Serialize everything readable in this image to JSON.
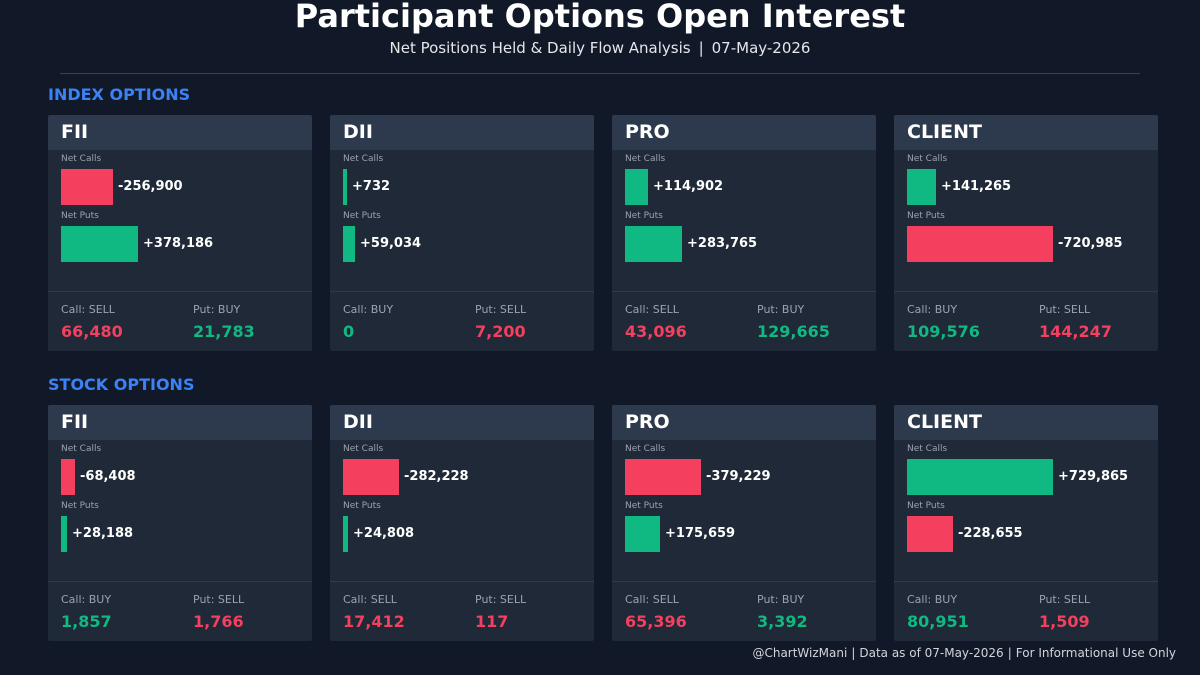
{
  "header": {
    "title": "Participant Options Open Interest",
    "subtitle": "Net Positions Held & Daily Flow Analysis",
    "date": "07-May-2026"
  },
  "colors": {
    "positive": "#10b981",
    "negative": "#f43f5e",
    "section": "#3b82f6",
    "background": "#111827",
    "card": "#1f2937",
    "card_header": "#2d3a4d"
  },
  "labels": {
    "net_calls": "Net Calls",
    "net_puts": "Net Puts"
  },
  "chart_data": [
    {
      "type": "bar",
      "section": "INDEX OPTIONS",
      "participants": [
        {
          "name": "FII",
          "net_calls": -256900,
          "net_calls_text": "-256,900",
          "net_puts": 378186,
          "net_puts_text": "+378,186",
          "call_flow_label": "Call: SELL",
          "call_flow_value": "66,480",
          "call_flow_dir": "negative",
          "put_flow_label": "Put: BUY",
          "put_flow_value": "21,783",
          "put_flow_dir": "positive"
        },
        {
          "name": "DII",
          "net_calls": 732,
          "net_calls_text": "+732",
          "net_puts": 59034,
          "net_puts_text": "+59,034",
          "call_flow_label": "Call: BUY",
          "call_flow_value": "0",
          "call_flow_dir": "positive",
          "put_flow_label": "Put: SELL",
          "put_flow_value": "7,200",
          "put_flow_dir": "negative"
        },
        {
          "name": "PRO",
          "net_calls": 114902,
          "net_calls_text": "+114,902",
          "net_puts": 283765,
          "net_puts_text": "+283,765",
          "call_flow_label": "Call: SELL",
          "call_flow_value": "43,096",
          "call_flow_dir": "negative",
          "put_flow_label": "Put: BUY",
          "put_flow_value": "129,665",
          "put_flow_dir": "positive"
        },
        {
          "name": "CLIENT",
          "net_calls": 141265,
          "net_calls_text": "+141,265",
          "net_puts": -720985,
          "net_puts_text": "-720,985",
          "call_flow_label": "Call: BUY",
          "call_flow_value": "109,576",
          "call_flow_dir": "positive",
          "put_flow_label": "Put: SELL",
          "put_flow_value": "144,247",
          "put_flow_dir": "negative"
        }
      ]
    },
    {
      "type": "bar",
      "section": "STOCK OPTIONS",
      "participants": [
        {
          "name": "FII",
          "net_calls": -68408,
          "net_calls_text": "-68,408",
          "net_puts": 28188,
          "net_puts_text": "+28,188",
          "call_flow_label": "Call: BUY",
          "call_flow_value": "1,857",
          "call_flow_dir": "positive",
          "put_flow_label": "Put: SELL",
          "put_flow_value": "1,766",
          "put_flow_dir": "negative"
        },
        {
          "name": "DII",
          "net_calls": -282228,
          "net_calls_text": "-282,228",
          "net_puts": 24808,
          "net_puts_text": "+24,808",
          "call_flow_label": "Call: SELL",
          "call_flow_value": "17,412",
          "call_flow_dir": "negative",
          "put_flow_label": "Put: SELL",
          "put_flow_value": "117",
          "put_flow_dir": "negative"
        },
        {
          "name": "PRO",
          "net_calls": -379229,
          "net_calls_text": "-379,229",
          "net_puts": 175659,
          "net_puts_text": "+175,659",
          "call_flow_label": "Call: SELL",
          "call_flow_value": "65,396",
          "call_flow_dir": "negative",
          "put_flow_label": "Put: BUY",
          "put_flow_value": "3,392",
          "put_flow_dir": "positive"
        },
        {
          "name": "CLIENT",
          "net_calls": 729865,
          "net_calls_text": "+729,865",
          "net_puts": -228655,
          "net_puts_text": "-228,655",
          "call_flow_label": "Call: BUY",
          "call_flow_value": "80,951",
          "call_flow_dir": "positive",
          "put_flow_label": "Put: SELL",
          "put_flow_value": "1,509",
          "put_flow_dir": "negative"
        }
      ]
    }
  ],
  "footer": {
    "handle": "@ChartWizMani",
    "data_as_of": "Data as of 07-May-2026",
    "disclaimer": "For Informational Use Only"
  }
}
